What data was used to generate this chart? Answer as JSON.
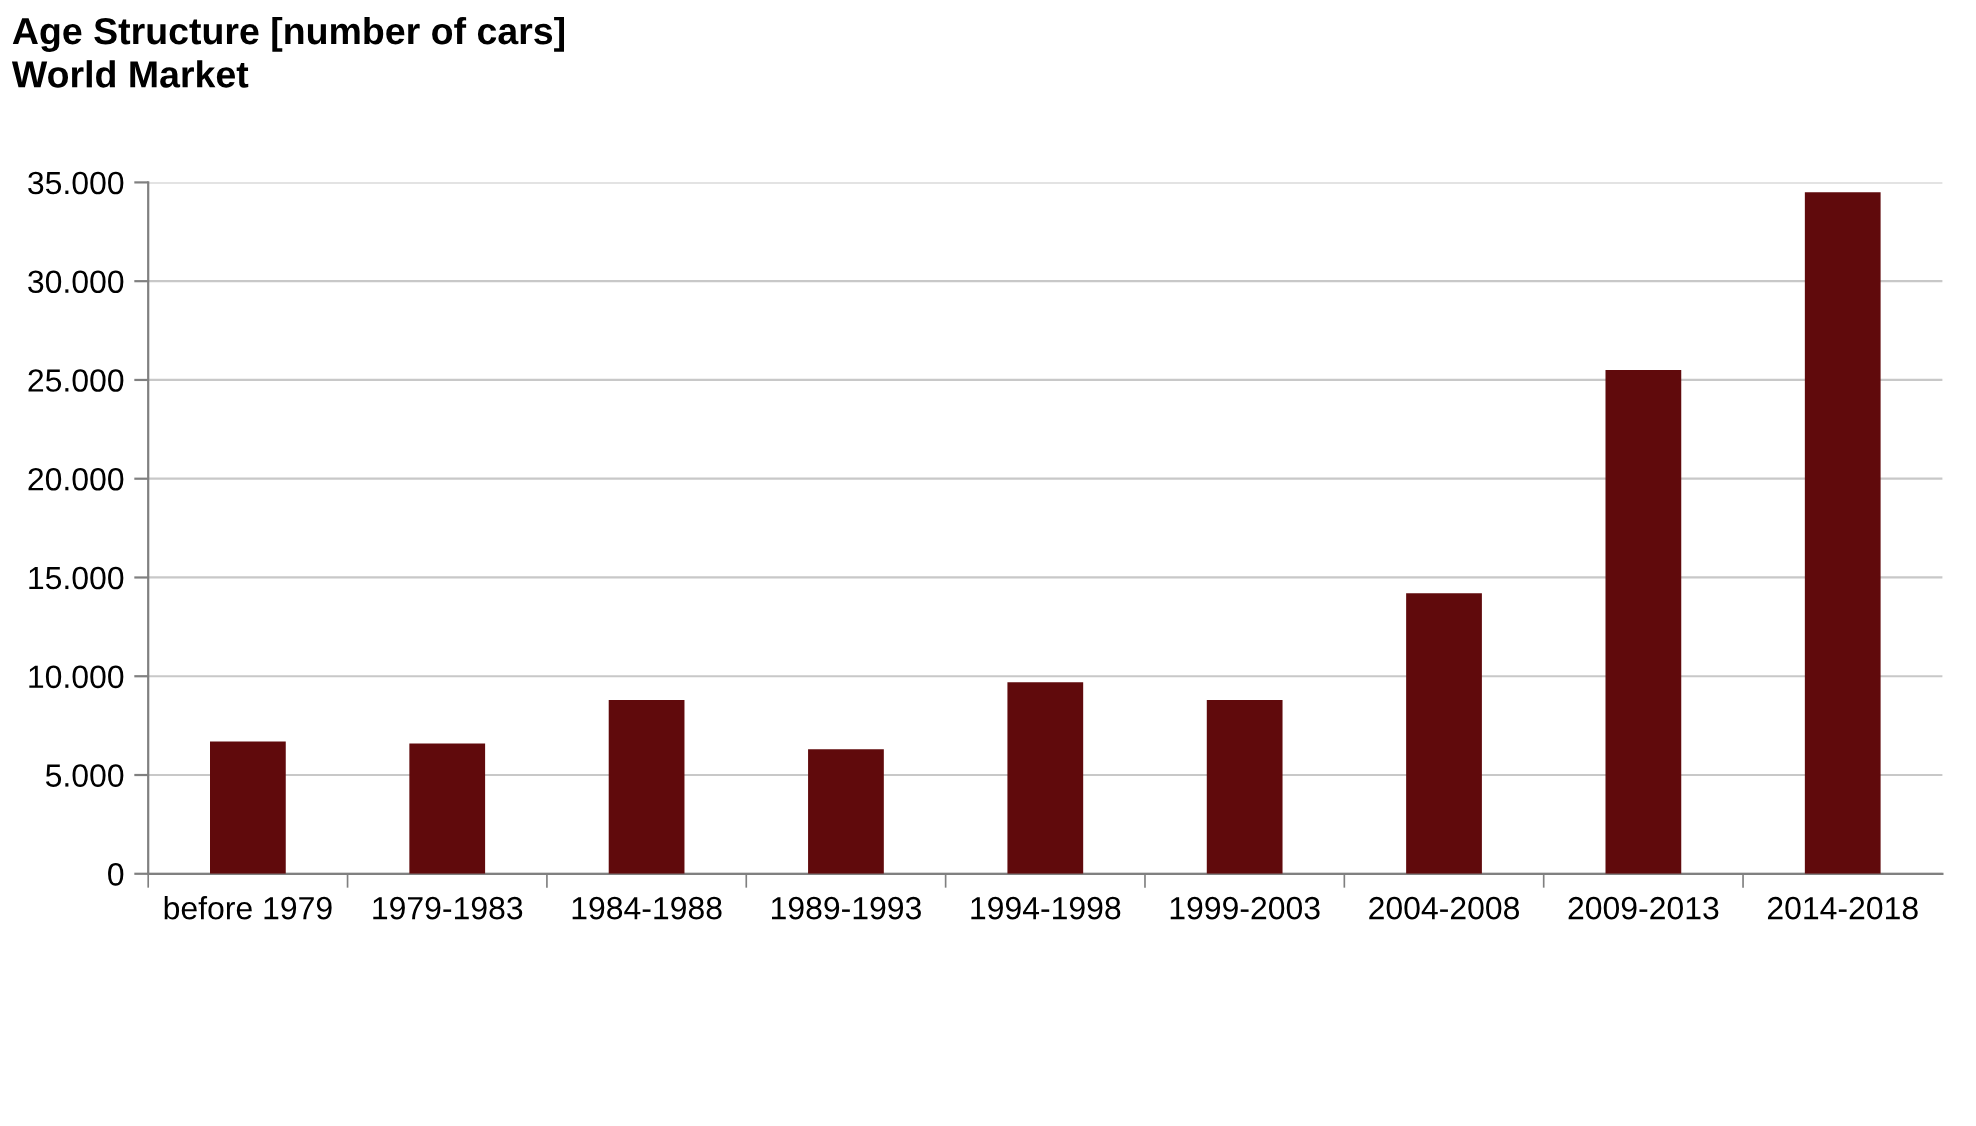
{
  "chart_data": {
    "type": "bar",
    "title": "Age Structure [number of cars]\nWorld Market",
    "categories": [
      "before 1979",
      "1979-1983",
      "1984-1988",
      "1989-1993",
      "1994-1998",
      "1999-2003",
      "2004-2008",
      "2009-2013",
      "2014-2018"
    ],
    "values": [
      6700,
      6600,
      8800,
      6300,
      9700,
      8800,
      14200,
      25500,
      34500
    ],
    "color": "#600a0c",
    "ylim": [
      0,
      35000
    ],
    "yticks": [
      {
        "value": 0,
        "label": "0"
      },
      {
        "value": 5000,
        "label": "5.000"
      },
      {
        "value": 10000,
        "label": "10.000"
      },
      {
        "value": 15000,
        "label": "15.000"
      },
      {
        "value": 20000,
        "label": "20.000"
      },
      {
        "value": 25000,
        "label": "25.000"
      },
      {
        "value": 30000,
        "label": "30.000"
      },
      {
        "value": 35000,
        "label": "35.000"
      }
    ],
    "grid": "y"
  }
}
